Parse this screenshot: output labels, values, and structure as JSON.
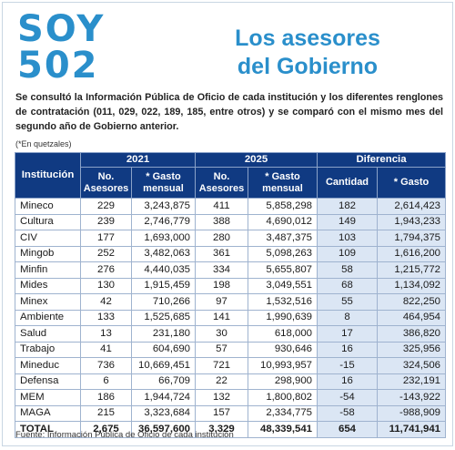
{
  "logo": {
    "line1": "SOY",
    "line2": "502"
  },
  "headline": {
    "line1": "Los asesores",
    "line2": "del Gobierno"
  },
  "intro": "Se consultó la Información Pública de Oficio de cada institución y los diferentes renglones de contratación (011, 029, 022, 189, 185, entre otros) y se comparó con el mismo mes del segundo año de Gobierno anterior.",
  "unit_note": "(*En quetzales)",
  "table": {
    "col_institution": "Institución",
    "year_a": "2021",
    "year_b": "2025",
    "diff_group": "Diferencia",
    "col_advisors": "No. Asesores",
    "col_monthly": "* Gasto mensual",
    "col_quantity": "Cantidad",
    "col_spend": "* Gasto",
    "rows": [
      {
        "name": "Mineco",
        "a_count": "229",
        "a_spend": "3,243,875",
        "b_count": "411",
        "b_spend": "5,858,298",
        "d_count": "182",
        "d_spend": "2,614,423"
      },
      {
        "name": "Cultura",
        "a_count": "239",
        "a_spend": "2,746,779",
        "b_count": "388",
        "b_spend": "4,690,012",
        "d_count": "149",
        "d_spend": "1,943,233"
      },
      {
        "name": "CIV",
        "a_count": "177",
        "a_spend": "1,693,000",
        "b_count": "280",
        "b_spend": "3,487,375",
        "d_count": "103",
        "d_spend": "1,794,375"
      },
      {
        "name": "Mingob",
        "a_count": "252",
        "a_spend": "3,482,063",
        "b_count": "361",
        "b_spend": "5,098,263",
        "d_count": "109",
        "d_spend": "1,616,200"
      },
      {
        "name": "Minfin",
        "a_count": "276",
        "a_spend": "4,440,035",
        "b_count": "334",
        "b_spend": "5,655,807",
        "d_count": "58",
        "d_spend": "1,215,772"
      },
      {
        "name": "Mides",
        "a_count": "130",
        "a_spend": "1,915,459",
        "b_count": "198",
        "b_spend": "3,049,551",
        "d_count": "68",
        "d_spend": "1,134,092"
      },
      {
        "name": "Minex",
        "a_count": "42",
        "a_spend": "710,266",
        "b_count": "97",
        "b_spend": "1,532,516",
        "d_count": "55",
        "d_spend": "822,250"
      },
      {
        "name": "Ambiente",
        "a_count": "133",
        "a_spend": "1,525,685",
        "b_count": "141",
        "b_spend": "1,990,639",
        "d_count": "8",
        "d_spend": "464,954"
      },
      {
        "name": "Salud",
        "a_count": "13",
        "a_spend": "231,180",
        "b_count": "30",
        "b_spend": "618,000",
        "d_count": "17",
        "d_spend": "386,820"
      },
      {
        "name": "Trabajo",
        "a_count": "41",
        "a_spend": "604,690",
        "b_count": "57",
        "b_spend": "930,646",
        "d_count": "16",
        "d_spend": "325,956"
      },
      {
        "name": "Mineduc",
        "a_count": "736",
        "a_spend": "10,669,451",
        "b_count": "721",
        "b_spend": "10,993,957",
        "d_count": "-15",
        "d_spend": "324,506"
      },
      {
        "name": "Defensa",
        "a_count": "6",
        "a_spend": "66,709",
        "b_count": "22",
        "b_spend": "298,900",
        "d_count": "16",
        "d_spend": "232,191"
      },
      {
        "name": "MEM",
        "a_count": "186",
        "a_spend": "1,944,724",
        "b_count": "132",
        "b_spend": "1,800,802",
        "d_count": "-54",
        "d_spend": "-143,922"
      },
      {
        "name": "MAGA",
        "a_count": "215",
        "a_spend": "3,323,684",
        "b_count": "157",
        "b_spend": "2,334,775",
        "d_count": "-58",
        "d_spend": "-988,909"
      }
    ],
    "total": {
      "name": "TOTAL",
      "a_count": "2,675",
      "a_spend": "36,597,600",
      "b_count": "3,329",
      "b_spend": "48,339,541",
      "d_count": "654",
      "d_spend": "11,741,941"
    }
  },
  "source": "Fuente: Información Pública de Oficio de cada institución",
  "colors": {
    "brand_blue": "#2a8fcb",
    "header_navy": "#103a82",
    "diff_bg": "#dbe6f4"
  }
}
